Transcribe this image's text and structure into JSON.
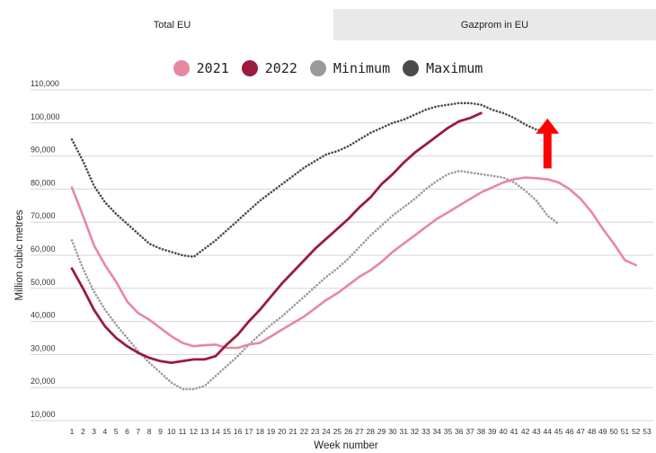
{
  "tabs": [
    {
      "label": "Total EU",
      "active": true
    },
    {
      "label": "Gazprom in EU",
      "active": false
    }
  ],
  "colors": {
    "y2021": "#e8889e",
    "y2022": "#9b1b3f",
    "minimum": "#9a9a9a",
    "maximum": "#4a4a4a",
    "arrow": "#ff0000"
  },
  "chart_data": {
    "type": "line",
    "xlabel": "Week number",
    "ylabel": "Million cubic metres",
    "ylim": [
      10000,
      110000
    ],
    "yticks": [
      10000,
      20000,
      30000,
      40000,
      50000,
      60000,
      70000,
      80000,
      90000,
      100000,
      110000
    ],
    "ytick_labels": [
      "10,000",
      "20,000",
      "30,000",
      "40,000",
      "50,000",
      "60,000",
      "70,000",
      "80,000",
      "90,000",
      "100,000",
      "110,000"
    ],
    "x": [
      1,
      2,
      3,
      4,
      5,
      6,
      7,
      8,
      9,
      10,
      11,
      12,
      13,
      14,
      15,
      16,
      17,
      18,
      19,
      20,
      21,
      22,
      23,
      24,
      25,
      26,
      27,
      28,
      29,
      30,
      31,
      32,
      33,
      34,
      35,
      36,
      37,
      38,
      39,
      40,
      41,
      42,
      43,
      44,
      45,
      46,
      47,
      48,
      49,
      50,
      51,
      52,
      53
    ],
    "legend_position": "top-center",
    "grid": true,
    "series": [
      {
        "name": "2021",
        "key": "y2021",
        "style": "solid",
        "values": [
          80500,
          72000,
          63000,
          57000,
          52000,
          46000,
          42500,
          40500,
          38000,
          35500,
          33500,
          32500,
          32800,
          33000,
          32000,
          32000,
          33000,
          33500,
          35500,
          37500,
          39500,
          41500,
          44000,
          46500,
          48500,
          51000,
          53500,
          55500,
          58000,
          61000,
          63500,
          66000,
          68500,
          71000,
          73000,
          75000,
          77000,
          79000,
          80500,
          82000,
          83000,
          83500,
          83300,
          83000,
          82000,
          80000,
          77000,
          73000,
          68000,
          63500,
          58500,
          57000,
          null
        ]
      },
      {
        "name": "2022",
        "key": "y2022",
        "style": "solid",
        "values": [
          56000,
          50000,
          43500,
          38500,
          35000,
          32500,
          30500,
          29000,
          28000,
          27500,
          28000,
          28500,
          28500,
          29500,
          33000,
          36000,
          40000,
          43500,
          47500,
          51500,
          55000,
          58500,
          62000,
          65000,
          68000,
          71000,
          74500,
          77500,
          81500,
          84500,
          88000,
          91000,
          93500,
          96000,
          98500,
          100500,
          101500,
          103000,
          null,
          null,
          null,
          null,
          null,
          null,
          null,
          null,
          null,
          null,
          null,
          null,
          null,
          null,
          null
        ]
      },
      {
        "name": "Minimum",
        "key": "minimum",
        "style": "dotted",
        "values": [
          64500,
          56000,
          49000,
          43500,
          39000,
          35000,
          31000,
          27500,
          24500,
          21500,
          19500,
          19500,
          20500,
          23500,
          26500,
          29500,
          33000,
          36000,
          39000,
          41500,
          44500,
          47500,
          50500,
          53500,
          56000,
          59000,
          62500,
          66000,
          69000,
          72000,
          74500,
          77000,
          80000,
          82500,
          84500,
          85500,
          85000,
          84500,
          84000,
          83500,
          82000,
          79500,
          76500,
          72000,
          69500,
          null,
          null,
          null,
          null,
          null,
          null,
          null,
          null
        ]
      },
      {
        "name": "Maximum",
        "key": "maximum",
        "style": "dotted",
        "values": [
          95000,
          88500,
          81000,
          76000,
          72500,
          69500,
          66500,
          63500,
          62000,
          61000,
          60000,
          59500,
          62000,
          64500,
          67500,
          70500,
          73500,
          76500,
          79000,
          81500,
          84000,
          86500,
          88500,
          90500,
          91500,
          93000,
          95000,
          97000,
          98500,
          100000,
          101000,
          102500,
          104000,
          105000,
          105500,
          106000,
          106000,
          105500,
          104000,
          103000,
          101500,
          99500,
          98000,
          97500,
          null,
          null,
          null,
          null,
          null,
          null,
          null,
          null,
          null
        ]
      }
    ],
    "annotation": {
      "type": "arrow",
      "direction": "up",
      "x": 44,
      "y_from": 83000,
      "y_to": 103000
    }
  }
}
